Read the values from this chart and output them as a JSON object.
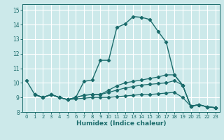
{
  "xlabel": "Humidex (Indice chaleur)",
  "ylabel": "",
  "bg_color": "#cce9ea",
  "line_color": "#1a6b6b",
  "grid_color": "#ffffff",
  "xlim": [
    -0.5,
    23.5
  ],
  "ylim": [
    8.0,
    15.4
  ],
  "yticks": [
    8,
    9,
    10,
    11,
    12,
    13,
    14,
    15
  ],
  "xticks": [
    0,
    1,
    2,
    3,
    4,
    5,
    6,
    7,
    8,
    9,
    10,
    11,
    12,
    13,
    14,
    15,
    16,
    17,
    18,
    19,
    20,
    21,
    22,
    23
  ],
  "curve_main": {
    "x": [
      0,
      1,
      2,
      3,
      4,
      5,
      6,
      7,
      8,
      9,
      10,
      11,
      12,
      13,
      14,
      15,
      16,
      17,
      18,
      19,
      20,
      21,
      22,
      23
    ],
    "y": [
      10.15,
      9.2,
      9.0,
      9.2,
      9.0,
      8.85,
      9.0,
      10.1,
      10.2,
      11.55,
      11.55,
      13.8,
      14.05,
      14.55,
      14.5,
      14.35,
      13.55,
      12.8,
      10.55,
      9.85,
      8.4,
      8.5,
      8.35,
      8.3
    ]
  },
  "curve_mid1": {
    "x": [
      0,
      1,
      2,
      3,
      4,
      5,
      6,
      7,
      8,
      9,
      10,
      11,
      12,
      13,
      14,
      15,
      16,
      17,
      18,
      19,
      20,
      21,
      22,
      23
    ],
    "y": [
      null,
      9.2,
      9.0,
      9.2,
      9.0,
      8.85,
      9.0,
      9.15,
      9.2,
      9.2,
      9.5,
      9.8,
      10.0,
      10.1,
      10.2,
      10.3,
      10.4,
      10.55,
      10.55,
      9.85,
      8.4,
      8.5,
      8.35,
      8.3
    ]
  },
  "curve_mid2": {
    "x": [
      0,
      1,
      2,
      3,
      4,
      5,
      6,
      7,
      8,
      9,
      10,
      11,
      12,
      13,
      14,
      15,
      16,
      17,
      18,
      19,
      20,
      21,
      22,
      23
    ],
    "y": [
      null,
      9.2,
      9.0,
      9.2,
      9.0,
      8.85,
      9.0,
      9.15,
      9.2,
      9.2,
      9.35,
      9.5,
      9.65,
      9.75,
      9.85,
      9.9,
      9.95,
      10.0,
      10.15,
      9.85,
      8.4,
      8.5,
      8.35,
      8.3
    ]
  },
  "curve_low": {
    "x": [
      0,
      1,
      2,
      3,
      4,
      5,
      6,
      7,
      8,
      9,
      10,
      11,
      12,
      13,
      14,
      15,
      16,
      17,
      18,
      19,
      20,
      21,
      22,
      23
    ],
    "y": [
      null,
      9.2,
      9.0,
      9.2,
      9.0,
      8.85,
      8.9,
      8.95,
      9.0,
      9.0,
      9.0,
      9.05,
      9.1,
      9.15,
      9.2,
      9.2,
      9.25,
      9.3,
      9.35,
      9.0,
      8.4,
      8.5,
      8.35,
      8.3
    ]
  }
}
